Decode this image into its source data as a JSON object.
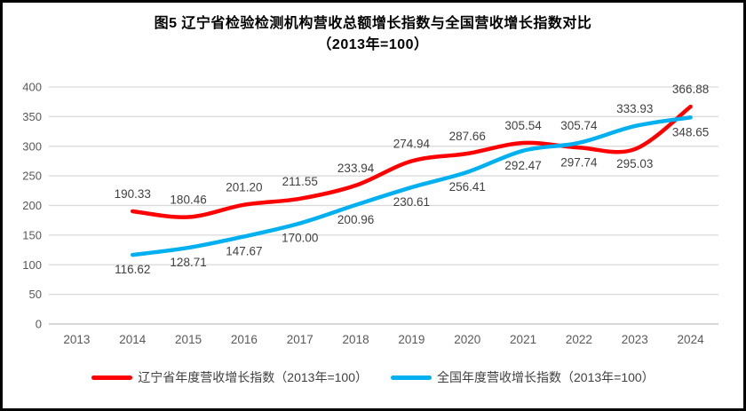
{
  "title": {
    "line1": "图5  辽宁省检验检测机构营收总额增长指数与全国营收增长指数对比",
    "line2": "（2013年=100）"
  },
  "chart_data": {
    "type": "line",
    "title": "图5 辽宁省检验检测机构营收总额增长指数与全国营收增长指数对比（2013年=100）",
    "categories": [
      "2013",
      "2014",
      "2015",
      "2016",
      "2017",
      "2018",
      "2019",
      "2020",
      "2021",
      "2022",
      "2023",
      "2024"
    ],
    "series": [
      {
        "name": "辽宁省年度营收增长指数（2013年=100）",
        "color": "#fe0000",
        "values": [
          null,
          190.33,
          180.46,
          201.2,
          211.55,
          233.94,
          274.94,
          287.66,
          305.54,
          297.74,
          295.03,
          366.88
        ],
        "label_positions": [
          null,
          "above",
          "above",
          "above",
          "above",
          "above",
          "above",
          "above",
          "above",
          "below",
          "below",
          "above"
        ]
      },
      {
        "name": "全国年度营收增长指数（2013年=100）",
        "color": "#00b0f0",
        "values": [
          null,
          116.62,
          128.71,
          147.67,
          170.0,
          200.96,
          230.61,
          256.41,
          292.47,
          305.74,
          333.93,
          348.65
        ],
        "label_positions": [
          null,
          "below",
          "below",
          "below",
          "below",
          "below",
          "below",
          "below",
          "below",
          "above",
          "above",
          "below"
        ]
      }
    ],
    "xlabel": "",
    "ylabel": "",
    "ylim": [
      0,
      400
    ],
    "y_ticks": [
      0,
      50,
      100,
      150,
      200,
      250,
      300,
      350,
      400
    ],
    "grid": true,
    "legend_position": "bottom",
    "colors": {
      "gridline": "#d9d9d9",
      "axis_line": "#bfbfbf",
      "tick_label": "#595959",
      "data_label": "#404040"
    }
  },
  "legend": {
    "items": [
      {
        "label": "辽宁省年度营收增长指数（2013年=100）"
      },
      {
        "label": "全国年度营收增长指数（2013年=100）"
      }
    ]
  }
}
